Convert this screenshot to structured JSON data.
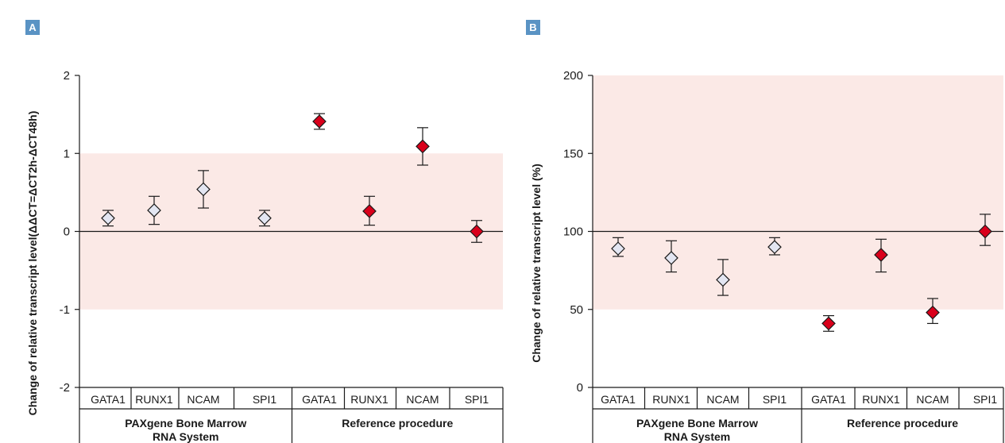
{
  "colors": {
    "badge": "#5a93c4",
    "band": "#fbe9e6",
    "paxgene_marker_fill": "#e3e6f2",
    "reference_marker_fill": "#d9001b",
    "axis": "#1a1a1a"
  },
  "chart_data": [
    {
      "panel": "A",
      "type": "scatter",
      "ylabel": "Change of relative transcript level(ΔΔCT=ΔCT2h-ΔCT48h)",
      "ylim": [
        -2,
        2
      ],
      "yticks": [
        -2,
        -1,
        0,
        1,
        2
      ],
      "ytick_labels": [
        "-2",
        "-1",
        "0",
        "1",
        "2"
      ],
      "reference_line": 0,
      "shaded_band": [
        -1,
        1
      ],
      "categories": [
        "GATA1",
        "RUNX1",
        "NCAM",
        "SPI1",
        "GATA1",
        "RUNX1",
        "NCAM",
        "SPI1"
      ],
      "groups": [
        {
          "label": "PAXgene Bone Marrow RNA System",
          "categories": [
            "GATA1",
            "RUNX1",
            "NCAM",
            "SPI1"
          ]
        },
        {
          "label": "Reference procedure",
          "categories": [
            "GATA1",
            "RUNX1",
            "NCAM",
            "SPI1"
          ]
        }
      ],
      "series": [
        {
          "marker": "open-diamond",
          "values": [
            0.17,
            0.27,
            0.54,
            0.17
          ],
          "err_low": [
            0.07,
            0.09,
            0.3,
            0.07
          ],
          "err_high": [
            0.27,
            0.45,
            0.78,
            0.27
          ]
        },
        {
          "marker": "filled-diamond",
          "values": [
            1.41,
            0.26,
            1.09,
            0.0
          ],
          "err_low": [
            1.31,
            0.08,
            0.85,
            -0.14
          ],
          "err_high": [
            1.51,
            0.45,
            1.33,
            0.14
          ]
        }
      ]
    },
    {
      "panel": "B",
      "type": "scatter",
      "ylabel": "Change of relative transcript level (%)",
      "ylim": [
        0,
        200
      ],
      "yticks": [
        0,
        50,
        100,
        150,
        200
      ],
      "ytick_labels": [
        "0",
        "50",
        "100",
        "150",
        "200"
      ],
      "reference_line": 100,
      "shaded_band": [
        50,
        200
      ],
      "categories": [
        "GATA1",
        "RUNX1",
        "NCAM",
        "SPI1",
        "GATA1",
        "RUNX1",
        "NCAM",
        "SPI1"
      ],
      "groups": [
        {
          "label": "PAXgene Bone Marrow RNA System",
          "categories": [
            "GATA1",
            "RUNX1",
            "NCAM",
            "SPI1"
          ]
        },
        {
          "label": "Reference procedure",
          "categories": [
            "GATA1",
            "RUNX1",
            "NCAM",
            "SPI1"
          ]
        }
      ],
      "series": [
        {
          "marker": "open-diamond",
          "values": [
            89,
            83,
            69,
            90
          ],
          "err_low": [
            84,
            74,
            59,
            85
          ],
          "err_high": [
            96,
            94,
            82,
            96
          ]
        },
        {
          "marker": "filled-diamond",
          "values": [
            41,
            85,
            48,
            100
          ],
          "err_low": [
            36,
            74,
            41,
            91
          ],
          "err_high": [
            46,
            95,
            57,
            111
          ]
        }
      ]
    }
  ]
}
